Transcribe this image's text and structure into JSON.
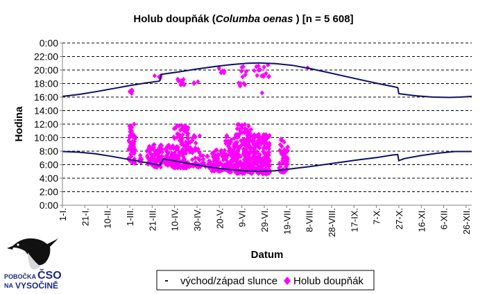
{
  "chart_data": {
    "type": "scatter",
    "title_prefix": "Holub doupňák (",
    "title_latin": "Columba oenas",
    "title_suffix": " ) [n = 5 608]",
    "xlabel": "Datum",
    "ylabel": "Hodina",
    "ylim": [
      0,
      24
    ],
    "y_ticks": [
      {
        "value": 0,
        "label": "0:00"
      },
      {
        "value": 2,
        "label": "2:00"
      },
      {
        "value": 4,
        "label": "4:00"
      },
      {
        "value": 6,
        "label": "6:00"
      },
      {
        "value": 8,
        "label": "8:00"
      },
      {
        "value": 10,
        "label": "10:00"
      },
      {
        "value": 12,
        "label": "12:00"
      },
      {
        "value": 14,
        "label": "14:00"
      },
      {
        "value": 16,
        "label": "16:00"
      },
      {
        "value": 18,
        "label": "18:00"
      },
      {
        "value": 20,
        "label": "20:00"
      },
      {
        "value": 22,
        "label": "22:00"
      },
      {
        "value": 24,
        "label": "0:00"
      }
    ],
    "xlim": [
      1,
      366
    ],
    "x_ticks": [
      {
        "day": 1,
        "label": "1-I."
      },
      {
        "day": 21,
        "label": "21-I."
      },
      {
        "day": 41,
        "label": "10-II."
      },
      {
        "day": 61,
        "label": "1-III."
      },
      {
        "day": 81,
        "label": "21-III."
      },
      {
        "day": 101,
        "label": "10-IV."
      },
      {
        "day": 121,
        "label": "30-IV."
      },
      {
        "day": 141,
        "label": "20-V."
      },
      {
        "day": 161,
        "label": "9-VI."
      },
      {
        "day": 181,
        "label": "29-VI."
      },
      {
        "day": 201,
        "label": "19-VII."
      },
      {
        "day": 221,
        "label": "8-VIII."
      },
      {
        "day": 241,
        "label": "28-VIII."
      },
      {
        "day": 261,
        "label": "17-IX."
      },
      {
        "day": 281,
        "label": "7-X."
      },
      {
        "day": 301,
        "label": "27-X."
      },
      {
        "day": 321,
        "label": "16-XI."
      },
      {
        "day": 341,
        "label": "6-XII."
      },
      {
        "day": 361,
        "label": "26-XII."
      }
    ],
    "series": [
      {
        "name": "východ/západ slunce",
        "color": "#0d0d6b",
        "sunrise": [
          [
            1,
            7.95
          ],
          [
            16,
            7.85
          ],
          [
            31,
            7.6
          ],
          [
            46,
            7.2
          ],
          [
            61,
            6.75
          ],
          [
            76,
            6.3
          ],
          [
            87,
            5.95
          ],
          [
            88,
            5.95
          ],
          [
            91,
            6.85
          ],
          [
            106,
            6.4
          ],
          [
            121,
            5.95
          ],
          [
            136,
            5.55
          ],
          [
            151,
            5.25
          ],
          [
            166,
            5.05
          ],
          [
            176,
            5.0
          ],
          [
            191,
            5.1
          ],
          [
            206,
            5.4
          ],
          [
            221,
            5.7
          ],
          [
            236,
            6.05
          ],
          [
            251,
            6.4
          ],
          [
            266,
            6.75
          ],
          [
            281,
            7.05
          ],
          [
            296,
            7.45
          ],
          [
            300,
            7.5
          ],
          [
            301,
            6.6
          ],
          [
            306,
            6.9
          ],
          [
            321,
            7.35
          ],
          [
            336,
            7.7
          ],
          [
            351,
            7.95
          ],
          [
            366,
            7.95
          ]
        ],
        "sunset": [
          [
            1,
            16.1
          ],
          [
            16,
            16.4
          ],
          [
            31,
            16.8
          ],
          [
            46,
            17.25
          ],
          [
            61,
            17.7
          ],
          [
            76,
            18.1
          ],
          [
            87,
            18.35
          ],
          [
            88,
            18.45
          ],
          [
            89,
            19.35
          ],
          [
            106,
            19.75
          ],
          [
            121,
            20.15
          ],
          [
            136,
            20.5
          ],
          [
            151,
            20.8
          ],
          [
            166,
            21.0
          ],
          [
            176,
            21.05
          ],
          [
            191,
            20.95
          ],
          [
            206,
            20.7
          ],
          [
            221,
            20.25
          ],
          [
            236,
            19.7
          ],
          [
            251,
            19.15
          ],
          [
            266,
            18.6
          ],
          [
            281,
            18.05
          ],
          [
            296,
            17.55
          ],
          [
            300,
            17.4
          ],
          [
            301,
            16.5
          ],
          [
            316,
            16.2
          ],
          [
            331,
            16.0
          ],
          [
            346,
            15.95
          ],
          [
            356,
            16.0
          ],
          [
            366,
            16.1
          ]
        ]
      },
      {
        "name": "Holub doupňák",
        "color": "#ff00ff",
        "clusters": [
          {
            "x": [
              60,
              66
            ],
            "y": [
              6.2,
              12.0
            ],
            "n": 60
          },
          {
            "x": [
              60,
              64
            ],
            "y": [
              16.5,
              17.5
            ],
            "n": 4
          },
          {
            "x": [
              68,
              72
            ],
            "y": [
              6.3,
              7.5
            ],
            "n": 6
          },
          {
            "x": [
              76,
              82
            ],
            "y": [
              6.0,
              9.0
            ],
            "n": 28
          },
          {
            "x": [
              82,
              90
            ],
            "y": [
              5.6,
              9.0
            ],
            "n": 60
          },
          {
            "x": [
              83,
              90
            ],
            "y": [
              18.8,
              19.5
            ],
            "n": 4
          },
          {
            "x": [
              92,
              100
            ],
            "y": [
              5.8,
              9.0
            ],
            "n": 40
          },
          {
            "x": [
              100,
              114
            ],
            "y": [
              5.5,
              12.0
            ],
            "n": 130
          },
          {
            "x": [
              103,
              110
            ],
            "y": [
              17.8,
              18.8
            ],
            "n": 10
          },
          {
            "x": [
              114,
              124
            ],
            "y": [
              5.6,
              10.5
            ],
            "n": 40
          },
          {
            "x": [
              118,
              122
            ],
            "y": [
              18.0,
              18.5
            ],
            "n": 3
          },
          {
            "x": [
              124,
              134
            ],
            "y": [
              5.5,
              7.5
            ],
            "n": 18
          },
          {
            "x": [
              134,
              146
            ],
            "y": [
              5.0,
              8.2
            ],
            "n": 60
          },
          {
            "x": [
              146,
              158
            ],
            "y": [
              4.9,
              10.5
            ],
            "n": 90
          },
          {
            "x": [
              140,
              146
            ],
            "y": [
              19.6,
              20.4
            ],
            "n": 6
          },
          {
            "x": [
              156,
              170
            ],
            "y": [
              4.7,
              12.0
            ],
            "n": 150
          },
          {
            "x": [
              158,
              166
            ],
            "y": [
              17.6,
              20.6
            ],
            "n": 12
          },
          {
            "x": [
              170,
              186
            ],
            "y": [
              4.6,
              10.5
            ],
            "n": 170
          },
          {
            "x": [
              172,
              186
            ],
            "y": [
              19.0,
              20.8
            ],
            "n": 14
          },
          {
            "x": [
              178,
              182
            ],
            "y": [
              16.6,
              17.0
            ],
            "n": 1
          },
          {
            "x": [
              194,
              202
            ],
            "y": [
              4.9,
              9.8
            ],
            "n": 55
          },
          {
            "x": [
              218,
              222
            ],
            "y": [
              20.0,
              20.4
            ],
            "n": 1
          }
        ]
      }
    ],
    "legend": [
      {
        "marker": "dash",
        "label": "východ/západ slunce"
      },
      {
        "marker": "diamond",
        "label": "Holub doupňák"
      }
    ],
    "gridlines": "horizontal-dashed"
  },
  "logo": {
    "line1": "POBOČKA",
    "line2": "ČSO",
    "line3": "NA",
    "line4": "VYSOČINĚ"
  }
}
